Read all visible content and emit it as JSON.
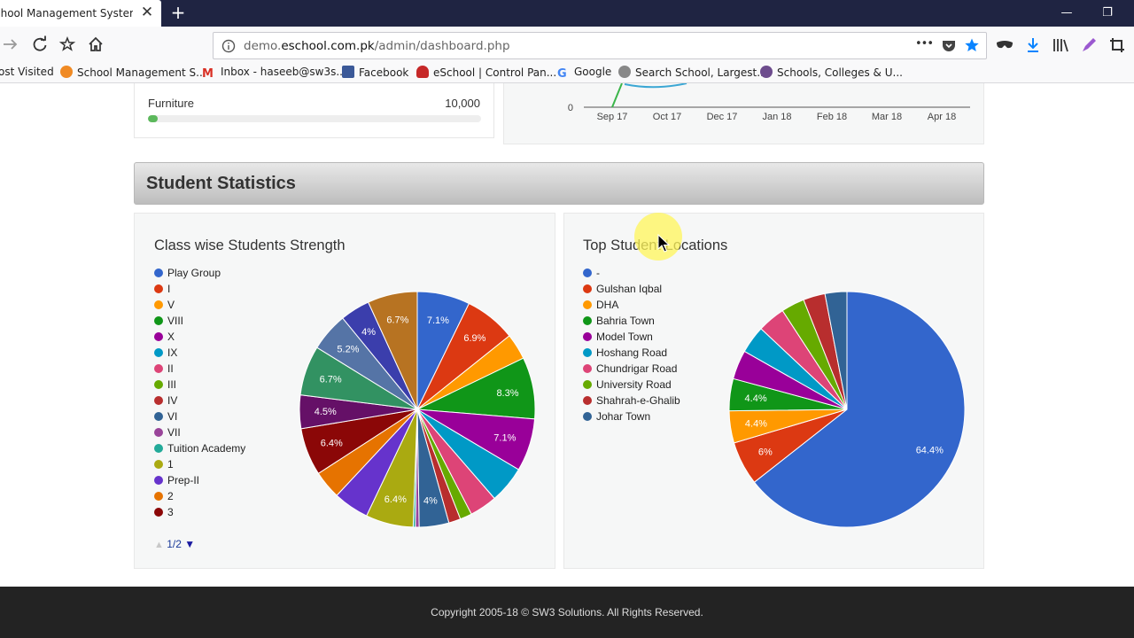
{
  "browser": {
    "tab_title": "chool Management System | A",
    "tab_close": "✕",
    "new_tab": "+",
    "url_prefix": "demo.",
    "url_domain": "eschool.com.pk",
    "url_path": "/admin/dashboard.php",
    "page_actions": "•••",
    "bookmarks": [
      {
        "label": "ost Visited",
        "icon": "none"
      },
      {
        "label": "School Management S...",
        "icon": "eschool-logo-icon",
        "color": "#f08a24"
      },
      {
        "label": "Inbox - haseeb@sw3s...",
        "icon": "gmail-icon",
        "color": "#d93025"
      },
      {
        "label": "Facebook",
        "icon": "facebook-icon",
        "color": "#3b5998"
      },
      {
        "label": "eSchool | Control Pan...",
        "icon": "eschool-shield-icon",
        "color": "#c62828"
      },
      {
        "label": "Google",
        "icon": "google-icon",
        "color": "#4285f4"
      },
      {
        "label": "Search School, Largest...",
        "icon": "globe-icon",
        "color": "#555555"
      },
      {
        "label": "Schools, Colleges & U...",
        "icon": "site-icon",
        "color": "#6d4c8d"
      }
    ]
  },
  "expense": {
    "label": "Furniture",
    "value": "10,000",
    "progress": 0.03,
    "bar_color": "#5cb85c"
  },
  "line_chart_fragment": {
    "y_tick": "0",
    "x_ticks": [
      "Sep 17",
      "Oct 17",
      "Dec 17",
      "Jan 18",
      "Feb 18",
      "Mar 18",
      "Apr 18"
    ]
  },
  "section": {
    "title": "Student Statistics"
  },
  "class_chart": {
    "title": "Class wise Students Strength",
    "pager": "1/2",
    "chart_data": {
      "type": "pie",
      "title": "Class wise Students Strength",
      "legend_entries": [
        "Play Group",
        "I",
        "V",
        "VIII",
        "X",
        "IX",
        "II",
        "III",
        "IV",
        "VI",
        "VII",
        "Tuition Academy",
        "1",
        "Prep-II",
        "2",
        "3"
      ],
      "slices": [
        {
          "value": 7.1,
          "label": "7.1%",
          "color": "#3366cc"
        },
        {
          "value": 6.9,
          "label": "6.9%",
          "color": "#dc3912"
        },
        {
          "value": 3.5,
          "label": "",
          "color": "#ff9900"
        },
        {
          "value": 8.3,
          "label": "8.3%",
          "color": "#109618"
        },
        {
          "value": 7.1,
          "label": "7.1%",
          "color": "#990099"
        },
        {
          "value": 5.0,
          "label": "",
          "color": "#0099c6"
        },
        {
          "value": 3.7,
          "label": "",
          "color": "#dd4477"
        },
        {
          "value": 1.6,
          "label": "",
          "color": "#66aa00"
        },
        {
          "value": 1.6,
          "label": "",
          "color": "#b82e2e"
        },
        {
          "value": 4.0,
          "label": "4%",
          "color": "#316395"
        },
        {
          "value": 0.5,
          "label": "",
          "color": "#994499"
        },
        {
          "value": 0.3,
          "label": "",
          "color": "#22aa99"
        },
        {
          "value": 6.4,
          "label": "6.4%",
          "color": "#aaaa11"
        },
        {
          "value": 4.8,
          "label": "",
          "color": "#6633cc"
        },
        {
          "value": 3.8,
          "label": "",
          "color": "#e67300"
        },
        {
          "value": 6.4,
          "label": "6.4%",
          "color": "#8b0707"
        },
        {
          "value": 4.5,
          "label": "4.5%",
          "color": "#651067"
        },
        {
          "value": 6.7,
          "label": "6.7%",
          "color": "#329262"
        },
        {
          "value": 5.2,
          "label": "5.2%",
          "color": "#5574a6"
        },
        {
          "value": 4.0,
          "label": "4%",
          "color": "#3b3eac"
        },
        {
          "value": 6.7,
          "label": "6.7%",
          "color": "#b77322"
        }
      ]
    }
  },
  "location_chart": {
    "title": "Top Student Locations",
    "chart_data": {
      "type": "pie",
      "title": "Top Student Locations",
      "slices": [
        {
          "name": "-",
          "value": 64.4,
          "label": "64.4%",
          "color": "#3366cc"
        },
        {
          "name": "Gulshan Iqbal",
          "value": 6.0,
          "label": "6%",
          "color": "#dc3912"
        },
        {
          "name": "DHA",
          "value": 4.4,
          "label": "4.4%",
          "color": "#ff9900"
        },
        {
          "name": "Bahria Town",
          "value": 4.4,
          "label": "4.4%",
          "color": "#109618"
        },
        {
          "name": "Model Town",
          "value": 4.0,
          "label": "",
          "color": "#990099"
        },
        {
          "name": "Hoshang Road",
          "value": 3.8,
          "label": "",
          "color": "#0099c6"
        },
        {
          "name": "Chundrigar Road",
          "value": 3.8,
          "label": "",
          "color": "#dd4477"
        },
        {
          "name": "University Road",
          "value": 3.2,
          "label": "",
          "color": "#66aa00"
        },
        {
          "name": "Shahrah-e-Ghalib",
          "value": 3.0,
          "label": "",
          "color": "#b82e2e"
        },
        {
          "name": "Johar Town",
          "value": 3.0,
          "label": "",
          "color": "#316395"
        }
      ]
    }
  },
  "footer": {
    "copyright": "Copyright 2005-18 © SW3 Solutions. All Rights Reserved."
  }
}
